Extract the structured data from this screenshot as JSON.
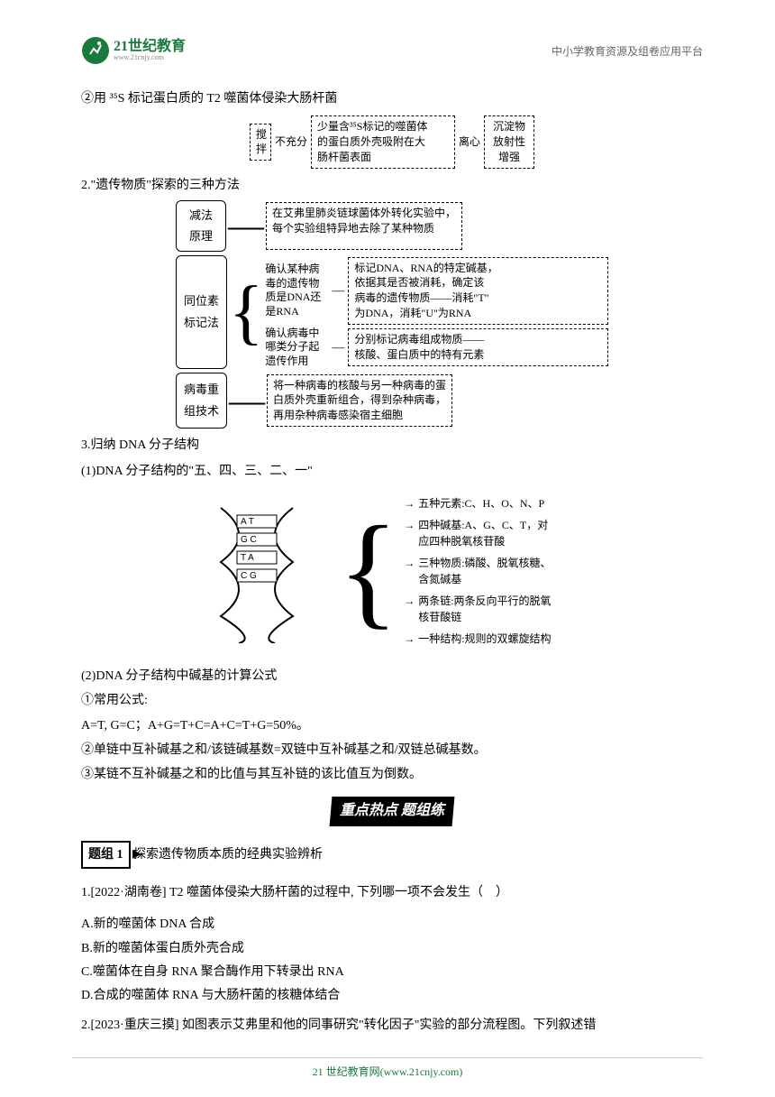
{
  "header": {
    "logo_cn": "21世纪教育",
    "logo_url": "www.21cnjy.com",
    "right_text": "中小学教育资源及组卷应用平台"
  },
  "t1": "②用 ³⁵S 标记蛋白质的 T2 噬菌体侵染大肠杆菌",
  "d1": {
    "b1": "搅\n拌",
    "a1": "不充分",
    "b2": "少量含³⁵S标记的噬菌体\n的蛋白质外壳吸附在大\n肠杆菌表面",
    "a2": "离心",
    "b3": "沉淀物\n放射性\n增强"
  },
  "t2": "2.\"遗传物质\"探索的三种方法",
  "d2": {
    "r1_left": "减法\n原理",
    "r1_right": "在艾弗里肺炎链球菌体外转化实验中，\n每个实验组特异地去除了某种物质",
    "r2_left": "同位素\n标记法",
    "r2_s1_l": "确认某种病\n毒的遗传物\n质是DNA还\n是RNA",
    "r2_s1_r": "标记DNA、RNA的特定碱基，\n依据其是否被消耗，确定该\n病毒的遗传物质——消耗\"T\"\n为DNA，消耗\"U\"为RNA",
    "r2_s2_l": "确认病毒中\n哪类分子起\n遗传作用",
    "r2_s2_r": "分别标记病毒组成物质——\n核酸、蛋白质中的特有元素",
    "r3_left": "病毒重\n组技术",
    "r3_right": "将一种病毒的核酸与另一种病毒的蛋\n白质外壳重新组合，得到杂种病毒，\n再用杂种病毒感染宿主细胞"
  },
  "t3": "3.归纳 DNA 分子结构",
  "t3_1": "(1)DNA 分子结构的\"五、四、三、二、一\"",
  "d3": {
    "l1": "五种元素:C、H、O、N、P",
    "l2": "四种碱基:A、G、C、T，对\n应四种脱氧核苷酸",
    "l3": "三种物质:磷酸、脱氧核糖、\n含氮碱基",
    "l4": "两条链:两条反向平行的脱氧\n核苷酸链",
    "l5": "一种结构:规则的双螺旋结构"
  },
  "t4": "(2)DNA 分子结构中碱基的计算公式",
  "t4_1": "①常用公式:",
  "t4_2": "A=T, G=C；A+G=T+C=A+C=T+G=50%。",
  "t4_3": "②单链中互补碱基之和/该链碱基数=双链中互补碱基之和/双链总碱基数。",
  "t4_4": "③某链不互补碱基之和的比值与其互补链的该比值互为倒数。",
  "banner": "重点热点 题组练",
  "group1_label": "题组 1",
  "group1_title": "探索遗传物质本质的经典实验辨析",
  "q1": {
    "stem": "1.[2022·湖南卷] T2 噬菌体侵染大肠杆菌的过程中, 下列哪一项不会发生（　）",
    "a": "A.新的噬菌体 DNA 合成",
    "b": "B.新的噬菌体蛋白质外壳合成",
    "c": "C.噬菌体在自身 RNA 聚合酶作用下转录出 RNA",
    "d": "D.合成的噬菌体 RNA 与大肠杆菌的核糖体结合"
  },
  "q2": {
    "stem": "2.[2023·重庆三摸]  如图表示艾弗里和他的同事研究\"转化因子\"实验的部分流程图。下列叙述错"
  },
  "footer": "21 世纪教育网(www.21cnjy.com)",
  "colors": {
    "logo_green": "#1a7a3e",
    "text": "#000000",
    "header_gray": "#666666"
  }
}
